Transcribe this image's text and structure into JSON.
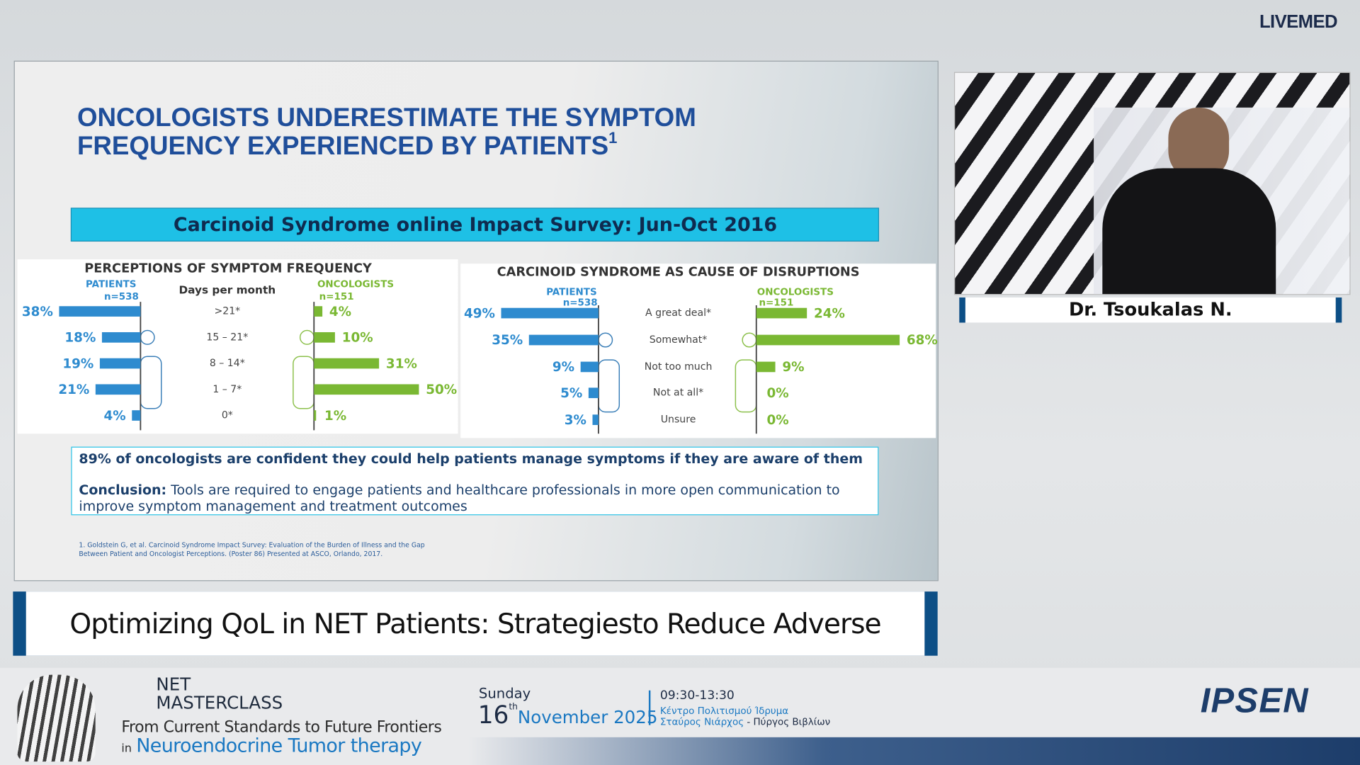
{
  "header": {
    "brand": "LIVEMED"
  },
  "slide": {
    "title": [
      "ONCOLOGISTS UNDERESTIMATE THE SYMPTOM",
      "FREQUENCY EXPERIENCED BY PATIENTS"
    ],
    "title_sup": "1",
    "banner": "Carcinoid Syndrome online Impact Survey: Jun-Oct 2016",
    "panels": [
      {
        "title": "PERCEPTIONS OF SYMPTOM FREQUENCY",
        "patients_label": "PATIENTS",
        "patients_n": "n=538",
        "middle_header": "Days per month",
        "oncologists_label": "ONCOLOGISTS",
        "oncologists_n": "n=151",
        "categories": [
          ">21*",
          "15 – 21*",
          "8 – 14*",
          "1 – 7*",
          "0*"
        ],
        "patients": {
          "values": [
            38,
            18,
            19,
            21,
            4
          ],
          "value_labels": [
            "38%",
            "18%",
            "19%",
            "21%",
            "4%"
          ]
        },
        "oncologists": {
          "values": [
            4,
            10,
            31,
            50,
            1
          ],
          "value_labels": [
            "4%",
            "10%",
            "31%",
            "50%",
            "1%"
          ]
        }
      },
      {
        "title": "CARCINOID SYNDROME AS CAUSE OF DISRUPTIONS",
        "patients_label": "PATIENTS",
        "patients_n": "n=538",
        "oncologists_label": "ONCOLOGISTS",
        "oncologists_n": "n=151",
        "categories": [
          "A great deal*",
          "Somewhat*",
          "Not too much",
          "Not at all*",
          "Unsure"
        ],
        "patients": {
          "values": [
            49,
            35,
            9,
            5,
            3
          ],
          "value_labels": [
            "49%",
            "35%",
            "9%",
            "5%",
            "3%"
          ]
        },
        "oncologists": {
          "values": [
            24,
            68,
            9,
            0,
            0
          ],
          "value_labels": [
            "24%",
            "68%",
            "9%",
            "0%",
            "0%"
          ]
        }
      }
    ],
    "note": "89% of oncologists are confident they could help patients manage symptoms if they are aware of them",
    "conclusion_label": "Conclusion:",
    "conclusion": "Tools are required to engage patients and healthcare professionals in more open communication to improve symptom management and treatment outcomes",
    "reference": "1. Goldstein G, et al. Carcinoid Syndrome Impact Survey: Evaluation of the Burden of Illness and the Gap Between Patient and Oncologist Perceptions. (Poster 86) Presented at ASCO, Orlando, 2017."
  },
  "speaker": {
    "name": "Dr. Tsoukalas N."
  },
  "session_title": "Optimizing QoL in NET Patients: Strategiesto Reduce Adverse Events",
  "footer": {
    "event": [
      "NET",
      "MASTERCLASS"
    ],
    "subtitle": "From Current Standards to Future Frontiers",
    "in": "in",
    "topic": "Neuroendocrine Tumor therapy",
    "day": "Sunday",
    "date_day": "16",
    "date_suffix": "th",
    "date_month": "November 2025",
    "time": "09:30-13:30",
    "venue": [
      "Κέντρο Πολιτισμού Ίδρυμα",
      "Σταύρος Νιάρχος",
      " - Πύργος Βιβλίων"
    ],
    "sponsor": "IPSEN"
  }
}
